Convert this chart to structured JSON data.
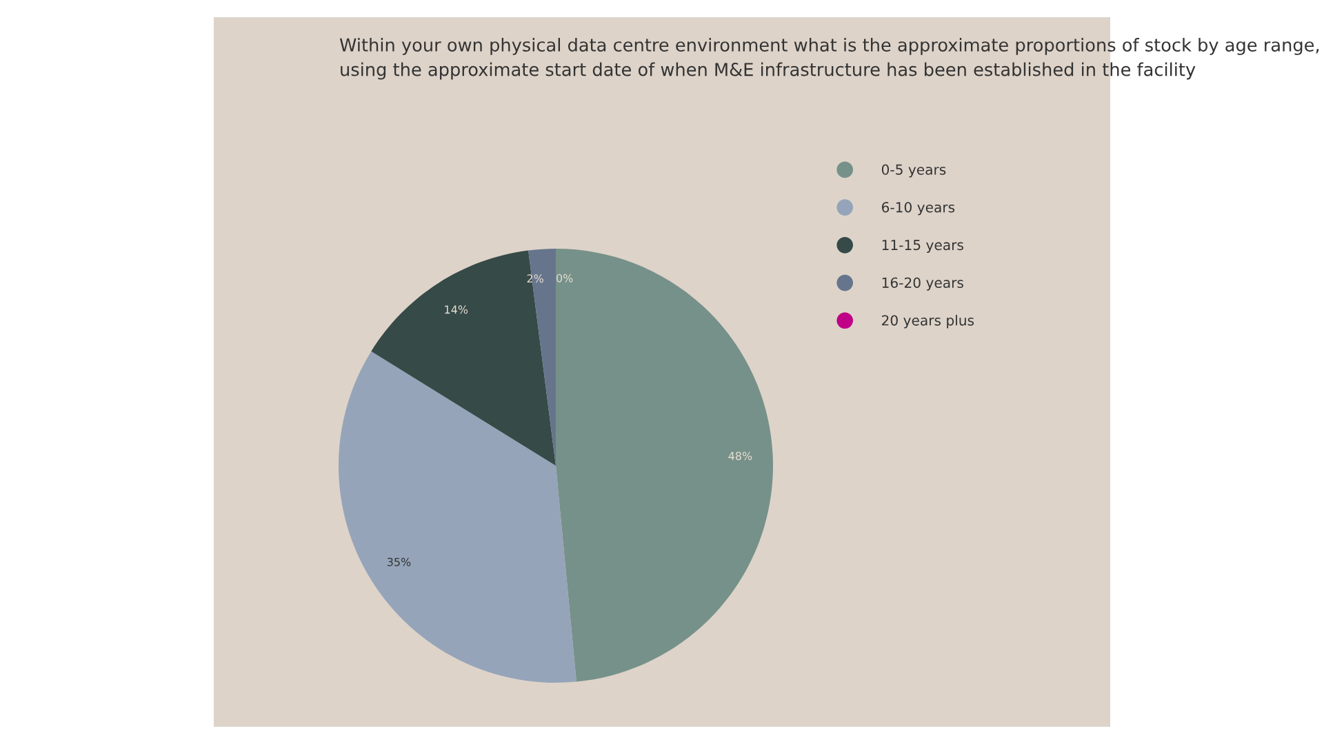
{
  "chart_data": {
    "type": "pie",
    "title": "Within your own physical data centre environment what is the approximate proportions of stock by age range, using the approximate start date of when M&E infrastructure has been established in the facility",
    "categories": [
      "0-5 years",
      "6-10 years",
      "11-15 years",
      "16-20 years",
      "20 years plus"
    ],
    "values": [
      48,
      35,
      14,
      2,
      0
    ],
    "colors": [
      "#76918a",
      "#95a4b9",
      "#364a48",
      "#66758c",
      "#c00086"
    ],
    "value_labels": [
      "48%",
      "35%",
      "14%",
      "2%",
      "0%"
    ],
    "legend": "top right"
  }
}
